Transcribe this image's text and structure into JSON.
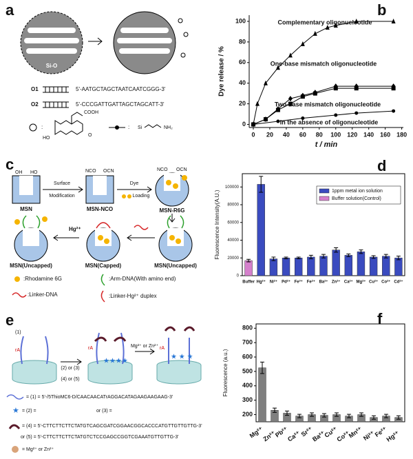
{
  "panel_a": {
    "label": "a",
    "core": "Si-O",
    "o1": "O1",
    "o2": "O2",
    "seq1": "5'-AATGCTAGCTAATCAATCGGG-3'",
    "seq2": "5'-CCCGATTGATTAGCTAGCATT-3'",
    "cooh": "COOH",
    "ho": "HO",
    "o": "O",
    "si": "Si",
    "nh2": "NH₂",
    "colon1": ":",
    "colon2": ":"
  },
  "panel_c": {
    "label": "c",
    "oh": "OH",
    "ho": "HO",
    "nco1": "NCO",
    "ocn1": "OCN",
    "nco2": "NCO",
    "ocn2": "OCN",
    "step1a": "Surface",
    "step1b": "Modification",
    "step2a": "Dye",
    "step2b": "Loading",
    "msn": "MSN",
    "msn_nco": "MSN-NCO",
    "msn_r6g": "MSN-R6G",
    "uncapped1": "MSN(Uncapped)",
    "capped": "MSN(Capped)",
    "uncapped2": "MSN(Uncapped)",
    "hg": "Hg²⁺",
    "leg1": ":Rhodamine 6G",
    "leg2": ":Arm-DNA(With amino end)",
    "leg3": ":Linker-DNA",
    "leg4": ":Linker-Hg²⁺ duplex"
  },
  "panel_e": {
    "label": "e",
    "n1": "(1)",
    "ra1": "rA",
    "ra2": "rA",
    "ra3": "rA",
    "step1": "(2) or (3)",
    "step2": "(4) or (5)",
    "step3": "Mg²⁺ or Zn²⁺",
    "def1": "= (1) = 5'-/5ThioMC6-D/CAACAACATrAGGACATAGAAGAAGAAG-3'",
    "def2": "= (2) =",
    "def3": "or (3) =",
    "def4": "= (4) = 5'-CTTCTTCTTCTATGTCAGCGATCGGAACGGCACCCATGTTGTTGTTG-3'",
    "def5": "or (5) = 5'-CTTCTTCTTCTATGTCTCCGAGCCGGTCGAAATGTTGTTG-3'",
    "def6": "= Mg²⁺ or Zn²⁺"
  },
  "chart_data": [
    {
      "type": "line",
      "panel_label": "b",
      "x_label": "t / min",
      "y_label": "Dye release / %",
      "xlim": [
        -5,
        182
      ],
      "xticks": [
        0,
        20,
        40,
        60,
        80,
        100,
        120,
        140,
        160,
        180
      ],
      "ylim": [
        -3,
        106
      ],
      "yticks": [
        0,
        20,
        40,
        60,
        80,
        100
      ],
      "series": [
        {
          "name": "Complementary oligonucleotide",
          "color": "#000000",
          "marker": "triangle",
          "x": [
            0,
            5,
            15,
            30,
            45,
            60,
            75,
            90,
            100,
            125,
            170
          ],
          "values": [
            0,
            20,
            40,
            55,
            67,
            78,
            88,
            94,
            96,
            100,
            100
          ]
        },
        {
          "name": "One-base mismatch oligonucleotide",
          "color": "#000000",
          "marker": "diamond",
          "x": [
            0,
            15,
            30,
            45,
            60,
            75,
            100,
            125,
            170
          ],
          "values": [
            0,
            5,
            15,
            25,
            28,
            31,
            37,
            37,
            37
          ]
        },
        {
          "name": "Two-base mismatch oligonucleotide",
          "color": "#000000",
          "marker": "square",
          "x": [
            0,
            15,
            30,
            45,
            60,
            75,
            100,
            125,
            170
          ],
          "values": [
            0,
            5,
            14,
            20,
            27,
            30,
            35,
            35,
            35
          ]
        },
        {
          "name": "In the absence of oligonucleotide",
          "color": "#000000",
          "marker": "circle",
          "x": [
            0,
            30,
            60,
            100,
            125,
            170
          ],
          "values": [
            0,
            3,
            6,
            9,
            11,
            13
          ]
        }
      ]
    },
    {
      "type": "bar",
      "panel_label": "d",
      "y_label": "Fluorescence Intensity(A.U.)",
      "categories": [
        "Buffer",
        "Hg²⁺",
        "Ni²⁺",
        "Pd²⁺",
        "Fe³⁺",
        "Fe²⁺",
        "Ba²⁺",
        "Zn²⁺",
        "Ca²⁺",
        "Mg²⁺",
        "Cu²⁺",
        "Co²⁺",
        "Cd²⁺"
      ],
      "ylim": [
        0,
        115000
      ],
      "yticks": [
        0,
        20000,
        40000,
        60000,
        80000,
        100000
      ],
      "legend": "upper right",
      "series": [
        {
          "name": "1ppm metal ion solution",
          "color": "#3a4bbf",
          "values": [
            null,
            103000,
            19000,
            20000,
            20000,
            21000,
            22000,
            29000,
            23000,
            27000,
            21000,
            22000,
            20000
          ],
          "errors": [
            null,
            9000,
            2000,
            1000,
            1000,
            2000,
            2000,
            2500,
            1500,
            2000,
            1500,
            2000,
            2000
          ]
        },
        {
          "name": "Buffer solution(Control)",
          "color": "#d580cc",
          "values": [
            17000,
            null,
            null,
            null,
            null,
            null,
            null,
            null,
            null,
            null,
            null,
            null,
            null
          ],
          "errors": [
            1500,
            null,
            null,
            null,
            null,
            null,
            null,
            null,
            null,
            null,
            null,
            null,
            null
          ]
        }
      ]
    },
    {
      "type": "bar",
      "panel_label": "f",
      "y_label": "Fluorescence (a.u.)",
      "categories": [
        "Mg²⁺",
        "Zn²⁺",
        "Pb²⁺",
        "Ca²⁺",
        "Sr²⁺",
        "Ba²⁺",
        "Cu²⁺",
        "Co²⁺",
        "Mn²⁺",
        "Ni²⁺",
        "Fe²⁺",
        "Hg²⁺"
      ],
      "ylim": [
        150,
        830
      ],
      "yticks": [
        200,
        300,
        400,
        500,
        600,
        700,
        800
      ],
      "series": [
        {
          "color": "#7f7f7f",
          "values": [
            525,
            230,
            210,
            190,
            200,
            195,
            200,
            190,
            200,
            180,
            190,
            180
          ],
          "errors": [
            40,
            15,
            15,
            12,
            12,
            12,
            12,
            12,
            12,
            12,
            12,
            12
          ]
        }
      ]
    }
  ]
}
